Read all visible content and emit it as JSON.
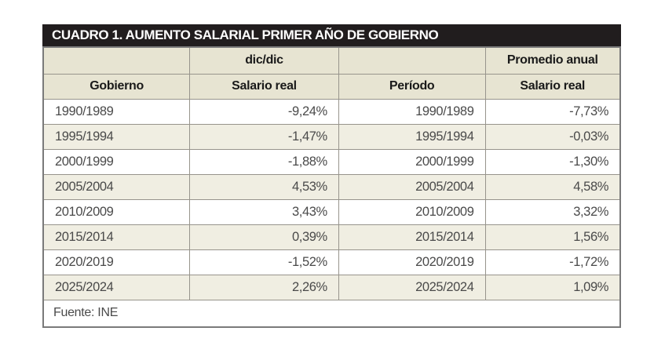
{
  "title_bar": "CUADRO 1. AUMENTO SALARIAL PRIMER AÑO DE GOBIERNO",
  "chart_data": {
    "type": "table",
    "title": "CUADRO 1. AUMENTO SALARIAL PRIMER AÑO DE GOBIERNO",
    "column_groups": [
      "",
      "dic/dic",
      "",
      "Promedio anual"
    ],
    "columns": [
      "Gobierno",
      "Salario real",
      "Período",
      "Salario real"
    ],
    "rows": [
      [
        "1990/1989",
        "-9,24%",
        "1990/1989",
        "-7,73%"
      ],
      [
        "1995/1994",
        "-1,47%",
        "1995/1994",
        "-0,03%"
      ],
      [
        "2000/1999",
        "-1,88%",
        "2000/1999",
        "-1,30%"
      ],
      [
        "2005/2004",
        "4,53%",
        "2005/2004",
        "4,58%"
      ],
      [
        "2010/2009",
        "3,43%",
        "2010/2009",
        "3,32%"
      ],
      [
        "2015/2014",
        "0,39%",
        "2015/2014",
        "1,56%"
      ],
      [
        "2020/2019",
        "-1,52%",
        "2020/2019",
        "-1,72%"
      ],
      [
        "2025/2024",
        "2,26%",
        "2025/2024",
        "1,09%"
      ]
    ],
    "source": "Fuente: INE",
    "notes": {
      "group_dic_dic_applies_to": "Salario real (columna 2)",
      "group_promedio_anual_applies_to": "Salario real (columna 4)"
    }
  },
  "colors": {
    "title_bar_bg": "#211d1e",
    "title_text": "#ffffff",
    "header_bg": "#e7e4d2",
    "header_text": "#1a1a1a",
    "row_bg": "#ffffff",
    "row_alt_bg": "#f0eee2",
    "cell_text": "#4a4a4a",
    "grid_border": "#97948c",
    "outer_border": "#7a7a7a"
  }
}
